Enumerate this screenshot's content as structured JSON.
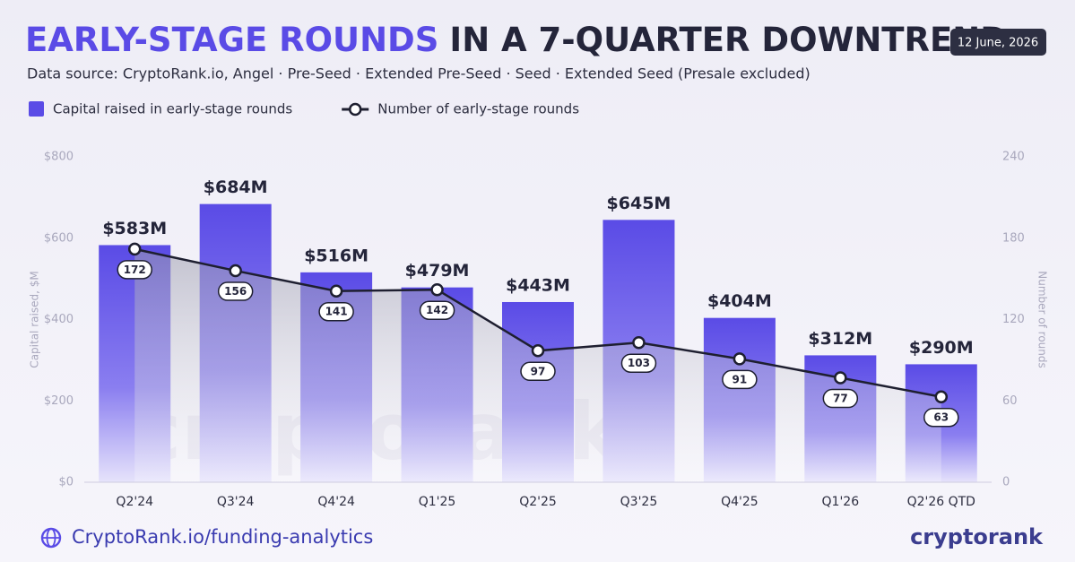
{
  "chart_data": {
    "type": "combo",
    "title_highlight": "EARLY-STAGE ROUNDS",
    "title": "IN A 7-QUARTER DOWNTREND",
    "subtitle": "Data source: CryptoRank.io, Angel · Pre-Seed · Extended Pre-Seed · Seed · Extended Seed  (Presale excluded)",
    "date": "12 June, 2026",
    "ylabel": "Capital raised, $M",
    "y2label": "Number of rounds",
    "footer_link": "CryptoRank.io/funding-analytics",
    "brand": "cryptorank",
    "categories": [
      "Q2'24",
      "Q3'24",
      "Q4'24",
      "Q1'25",
      "Q2'25",
      "Q3'25",
      "Q4'25",
      "Q1'26",
      "Q2'26 QTD"
    ],
    "series": [
      {
        "name": "Capital raised in early-stage rounds",
        "type": "bar",
        "color": "#5a4be6",
        "values": [
          583,
          684,
          516,
          479,
          443,
          645,
          404,
          312,
          290
        ],
        "value_labels": [
          "$583M",
          "$684M",
          "$516M",
          "$479M",
          "$443M",
          "$645M",
          "$404M",
          "$312M",
          "$290M"
        ]
      },
      {
        "name": "Number of early-stage rounds",
        "type": "line",
        "color": "#1e1f30",
        "axis": "y2",
        "values": [
          172,
          156,
          141,
          142,
          97,
          103,
          91,
          77,
          63
        ]
      }
    ],
    "ylim": [
      0,
      800
    ],
    "yticks": [
      {
        "value": 0,
        "label": "$0"
      },
      {
        "value": 200,
        "label": "$200"
      },
      {
        "value": 400,
        "label": "$400"
      },
      {
        "value": 600,
        "label": "$600"
      },
      {
        "value": 800,
        "label": "$800"
      }
    ],
    "y2lim": [
      0,
      240
    ],
    "y2ticks": [
      0,
      60,
      120,
      180,
      240
    ],
    "grid": false
  }
}
